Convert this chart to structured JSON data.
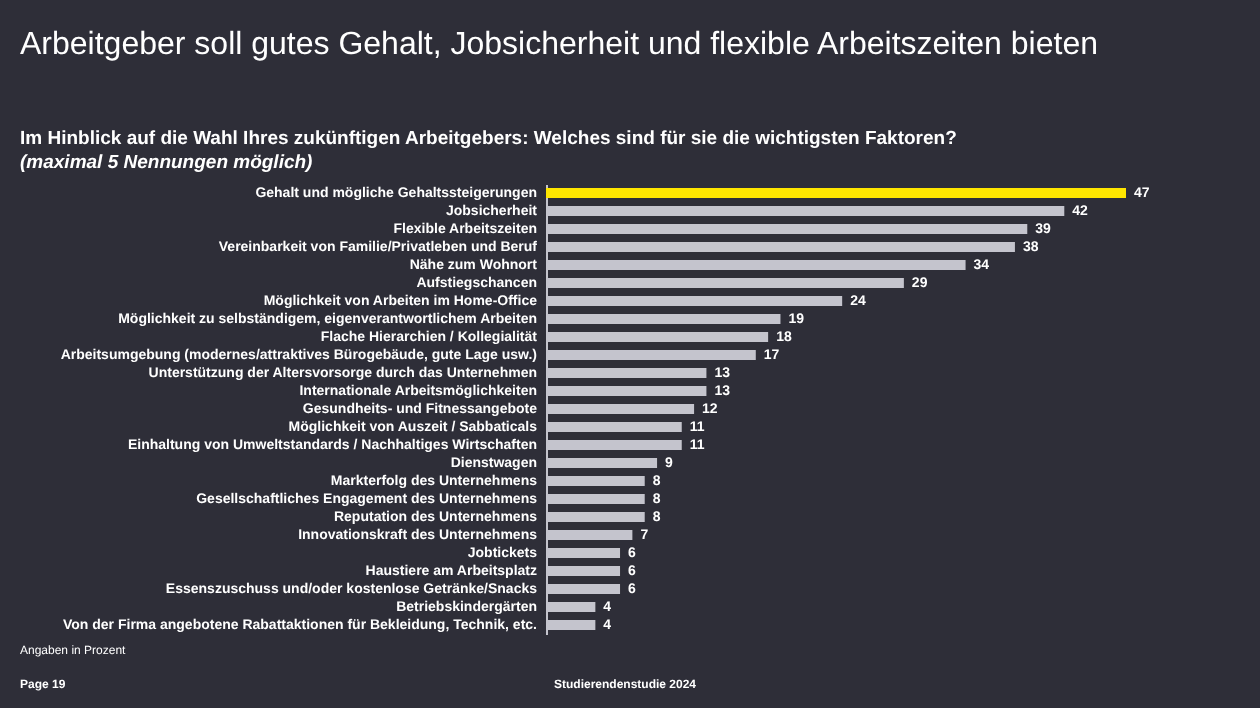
{
  "chart_data": {
    "type": "bar",
    "orientation": "horizontal",
    "title": "Arbeitgeber soll gutes Gehalt, Jobsicherheit und flexible Arbeitszeiten bieten",
    "subtitle": "Im Hinblick auf die Wahl Ihres zukünftigen Arbeitgebers: Welches sind für sie die wichtigsten Faktoren?",
    "categories": [
      "Gehalt und mögliche Gehaltssteigerungen",
      "Jobsicherheit",
      "Flexible Arbeitszeiten",
      "Vereinbarkeit von Familie/Privatleben und Beruf",
      "Nähe zum Wohnort",
      "Aufstiegschancen",
      "Möglichkeit von Arbeiten im Home-Office",
      "Möglichkeit zu selbständigem, eigenverantwortlichem Arbeiten",
      "Flache Hierarchien / Kollegialität",
      "Arbeitsumgebung (modernes/attraktives Bürogebäude, gute Lage usw.)",
      "Unterstützung der Altersvorsorge durch das Unternehmen",
      "Internationale Arbeitsmöglichkeiten",
      "Gesundheits- und Fitnessangebote",
      "Möglichkeit von Auszeit / Sabbaticals",
      "Einhaltung von Umweltstandards / Nachhaltiges Wirtschaften",
      "Dienstwagen",
      "Markterfolg des Unternehmens",
      "Gesellschaftliches Engagement des Unternehmens",
      "Reputation des Unternehmens",
      "Innovationskraft des Unternehmens",
      "Jobtickets",
      "Haustiere am Arbeitsplatz",
      "Essenszuschuss und/oder kostenlose Getränke/Snacks",
      "Betriebskindergärten",
      "Von der Firma angebotene Rabattaktionen für Bekleidung, Technik, etc."
    ],
    "values": [
      47,
      42,
      39,
      38,
      34,
      29,
      24,
      19,
      18,
      17,
      13,
      13,
      12,
      11,
      11,
      9,
      8,
      8,
      8,
      7,
      6,
      6,
      6,
      4,
      4
    ],
    "colors": [
      "#ffe600",
      "#c4c4cd",
      "#c4c4cd",
      "#c4c4cd",
      "#c4c4cd",
      "#c4c4cd",
      "#c4c4cd",
      "#c4c4cd",
      "#c4c4cd",
      "#c4c4cd",
      "#c4c4cd",
      "#c4c4cd",
      "#c4c4cd",
      "#c4c4cd",
      "#c4c4cd",
      "#c4c4cd",
      "#c4c4cd",
      "#c4c4cd",
      "#c4c4cd",
      "#c4c4cd",
      "#c4c4cd",
      "#c4c4cd",
      "#c4c4cd",
      "#c4c4cd",
      "#c4c4cd"
    ],
    "data_labels": true,
    "grid": false,
    "annotations": [
      "(maximal 5 Nennungen möglich)",
      "Angaben in Prozent",
      "Page 19",
      "Studierendenstudie 2024"
    ]
  }
}
